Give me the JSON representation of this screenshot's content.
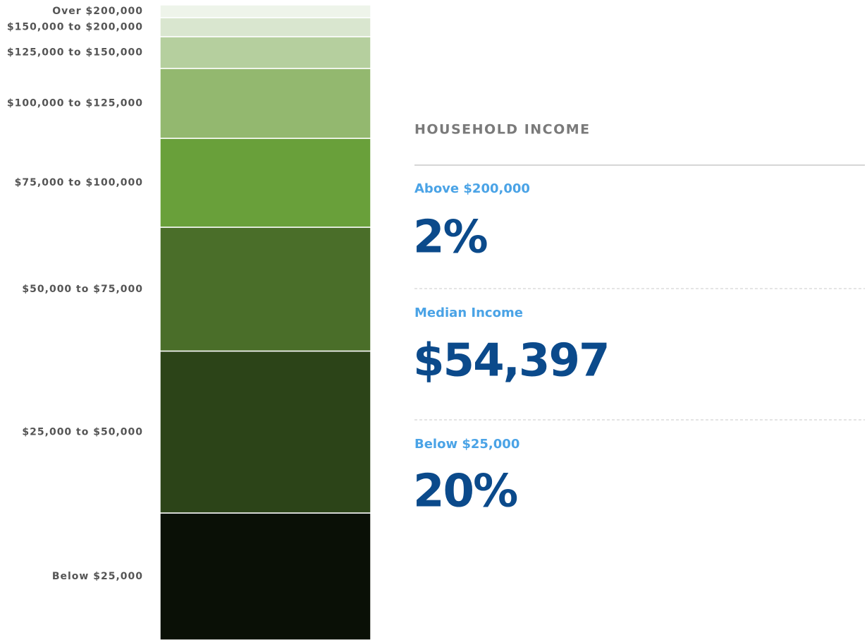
{
  "chart_data": {
    "type": "stacked-bar",
    "title": "HOUSEHOLD INCOME",
    "categories": [
      "Below $25,000",
      "$25,000 to $50,000",
      "$50,000 to $75,000",
      "$75,000 to $100,000",
      "$100,000 to $125,000",
      "$125,000 to $150,000",
      "$150,000 to $200,000",
      "Over $200,000"
    ],
    "values": [
      20,
      25.5,
      19.5,
      14,
      11,
      5,
      3,
      2
    ],
    "colors": [
      "#0a1006",
      "#2c4418",
      "#4a6e29",
      "#69a03a",
      "#93b86f",
      "#b5cf9e",
      "#d9e6cf",
      "#eef4ea"
    ],
    "ylim": [
      0,
      100
    ]
  },
  "stats": [
    {
      "label": "Above $200,000",
      "value": "2%"
    },
    {
      "label": "Median Income",
      "value": "$54,397"
    },
    {
      "label": "Below $25,000",
      "value": "20%"
    }
  ]
}
